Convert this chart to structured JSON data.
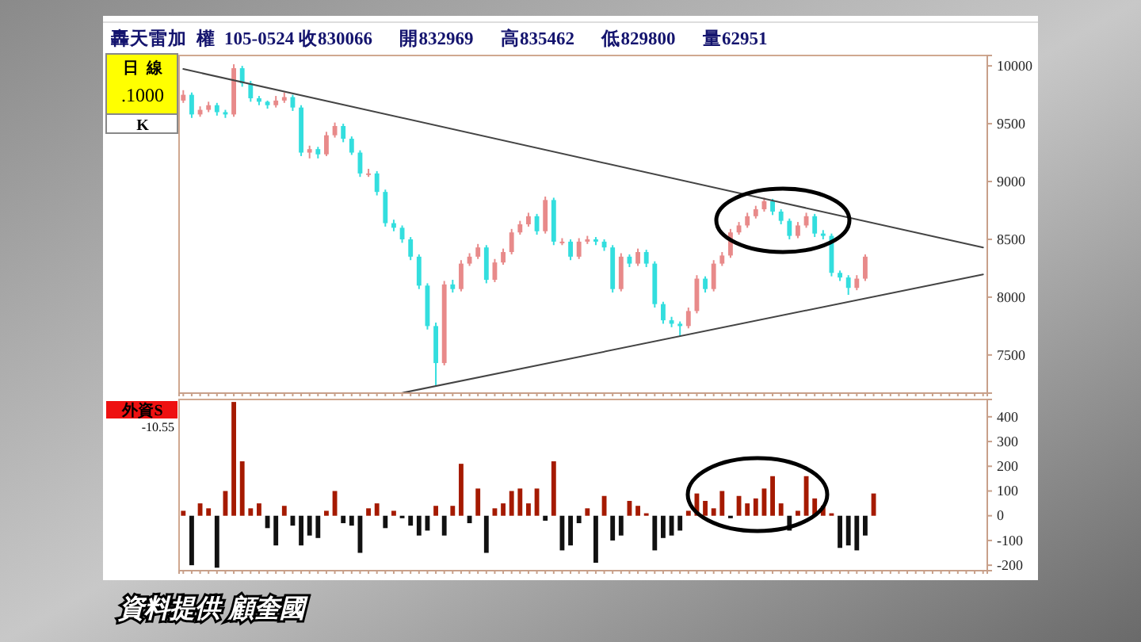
{
  "chart_data": [
    {
      "type": "candlestick",
      "title": "轟天雷加  權  105-0524 收830066      開832969      高835462      低829800      量62951",
      "annotations": [
        "日  線",
        ".1000",
        "K",
        "資料提供 顧奎國"
      ],
      "categories": [
        null,
        null,
        null,
        null,
        null,
        null,
        null,
        null,
        null,
        null,
        null,
        null,
        null,
        null,
        null,
        null,
        null,
        null,
        null,
        null,
        null,
        null,
        null,
        null,
        null,
        null,
        null,
        null,
        null,
        null,
        null,
        null,
        null,
        null,
        null,
        null,
        null,
        null,
        null,
        null,
        null,
        null,
        null,
        null,
        null,
        null,
        null,
        null,
        null,
        null,
        null,
        null,
        null,
        null,
        null,
        null,
        null,
        null,
        null,
        null,
        null,
        null,
        null,
        null,
        null,
        null,
        null,
        null,
        null,
        null,
        null,
        null,
        null,
        null,
        null,
        null,
        null,
        null,
        null,
        null,
        null,
        null,
        null,
        null,
        null,
        null,
        null,
        null,
        null,
        null,
        null,
        null,
        null,
        null,
        null,
        null
      ],
      "colors": [
        "#e88a8a",
        "#33dede",
        "#e88a8a",
        "#e88a8a",
        "#33dede",
        "#33dede",
        "#e88a8a",
        "#33dede",
        "#33dede",
        "#33dede",
        "#33dede",
        "#e88a8a",
        "#e88a8a",
        "#33dede",
        "#33dede",
        "#e88a8a",
        "#33dede",
        "#e88a8a",
        "#e88a8a",
        "#33dede",
        "#33dede",
        "#33dede",
        "#e88a8a",
        "#33dede",
        "#33dede",
        "#33dede",
        "#33dede",
        "#33dede",
        "#33dede",
        "#33dede",
        "#33dede",
        "#e88a8a",
        "#33dede",
        "#e88a8a",
        "#e88a8a",
        "#e88a8a",
        "#33dede",
        "#e88a8a",
        "#e88a8a",
        "#e88a8a",
        "#e88a8a",
        "#e88a8a",
        "#33dede",
        "#e88a8a",
        "#33dede",
        "#e88a8a",
        "#33dede",
        "#e88a8a",
        "#e88a8a",
        "#33dede",
        "#33dede",
        "#33dede",
        "#e88a8a",
        "#33dede",
        "#e88a8a",
        "#33dede",
        "#33dede",
        "#33dede",
        "#33dede",
        "#33dede",
        "#e88a8a",
        "#e88a8a",
        "#33dede",
        "#e88a8a",
        "#e88a8a",
        "#e88a8a",
        "#e88a8a",
        "#e88a8a",
        "#e88a8a",
        "#e88a8a",
        "#33dede",
        "#33dede",
        "#33dede",
        "#e88a8a",
        "#e88a8a",
        "#33dede",
        "#33dede",
        "#33dede",
        "#33dede",
        "#33dede",
        "#e88a8a",
        "#e88a8a",
        null,
        null,
        null,
        null,
        null,
        null,
        null,
        null,
        null,
        null,
        null,
        null,
        null,
        null
      ],
      "ohlc": [
        [
          9700,
          9790,
          9680,
          9750
        ],
        [
          9750,
          9770,
          9550,
          9580
        ],
        [
          9580,
          9650,
          9560,
          9620
        ],
        [
          9620,
          9690,
          9600,
          9660
        ],
        [
          9660,
          9680,
          9570,
          9600
        ],
        [
          9600,
          9620,
          9550,
          9580
        ],
        [
          9580,
          10014,
          9560,
          9980
        ],
        [
          9980,
          10000,
          9820,
          9850
        ],
        [
          9850,
          9870,
          9690,
          9720
        ],
        [
          9720,
          9740,
          9660,
          9690
        ],
        [
          9690,
          9700,
          9630,
          9660
        ],
        [
          9660,
          9740,
          9640,
          9700
        ],
        [
          9700,
          9770,
          9680,
          9730
        ],
        [
          9730,
          9750,
          9610,
          9640
        ],
        [
          9640,
          9660,
          9220,
          9250
        ],
        [
          9250,
          9310,
          9200,
          9280
        ],
        [
          9280,
          9300,
          9200,
          9235
        ],
        [
          9235,
          9430,
          9220,
          9400
        ],
        [
          9400,
          9510,
          9380,
          9480
        ],
        [
          9480,
          9500,
          9340,
          9370
        ],
        [
          9370,
          9390,
          9230,
          9250
        ],
        [
          9250,
          9270,
          9040,
          9070
        ],
        [
          9070,
          9110,
          9040,
          9070
        ],
        [
          9070,
          9090,
          8880,
          8910
        ],
        [
          8910,
          8930,
          8610,
          8640
        ],
        [
          8640,
          8670,
          8570,
          8600
        ],
        [
          8600,
          8620,
          8470,
          8500
        ],
        [
          8500,
          8520,
          8320,
          8350
        ],
        [
          8350,
          8370,
          8070,
          8100
        ],
        [
          8100,
          8120,
          7720,
          7750
        ],
        [
          7750,
          7780,
          7230,
          7430
        ],
        [
          7430,
          8140,
          7410,
          8110
        ],
        [
          8110,
          8150,
          8040,
          8070
        ],
        [
          8070,
          8320,
          8050,
          8290
        ],
        [
          8290,
          8380,
          8270,
          8350
        ],
        [
          8350,
          8460,
          8330,
          8430
        ],
        [
          8430,
          8450,
          8120,
          8150
        ],
        [
          8150,
          8330,
          8130,
          8300
        ],
        [
          8300,
          8420,
          8280,
          8390
        ],
        [
          8390,
          8590,
          8370,
          8560
        ],
        [
          8560,
          8660,
          8540,
          8630
        ],
        [
          8630,
          8730,
          8610,
          8700
        ],
        [
          8700,
          8720,
          8540,
          8570
        ],
        [
          8570,
          8870,
          8550,
          8840
        ],
        [
          8840,
          8860,
          8450,
          8480
        ],
        [
          8480,
          8510,
          8450,
          8480
        ],
        [
          8480,
          8500,
          8320,
          8350
        ],
        [
          8350,
          8510,
          8330,
          8480
        ],
        [
          8480,
          8530,
          8460,
          8500
        ],
        [
          8500,
          8520,
          8450,
          8480
        ],
        [
          8480,
          8500,
          8400,
          8430
        ],
        [
          8430,
          8450,
          8040,
          8070
        ],
        [
          8070,
          8380,
          8050,
          8350
        ],
        [
          8350,
          8370,
          8260,
          8290
        ],
        [
          8290,
          8420,
          8270,
          8390
        ],
        [
          8390,
          8410,
          8260,
          8290
        ],
        [
          8290,
          8310,
          7910,
          7940
        ],
        [
          7940,
          7960,
          7770,
          7800
        ],
        [
          7800,
          7830,
          7740,
          7770
        ],
        [
          7770,
          7790,
          7660,
          7750
        ],
        [
          7750,
          7910,
          7730,
          7880
        ],
        [
          7880,
          8190,
          7860,
          8160
        ],
        [
          8160,
          8180,
          8040,
          8070
        ],
        [
          8070,
          8320,
          8050,
          8290
        ],
        [
          8290,
          8390,
          8270,
          8360
        ],
        [
          8360,
          8590,
          8340,
          8560
        ],
        [
          8560,
          8650,
          8540,
          8620
        ],
        [
          8620,
          8730,
          8600,
          8700
        ],
        [
          8700,
          8790,
          8680,
          8760
        ],
        [
          8760,
          8860,
          8740,
          8830
        ],
        [
          8830,
          8850,
          8710,
          8740
        ],
        [
          8740,
          8760,
          8630,
          8660
        ],
        [
          8660,
          8680,
          8500,
          8530
        ],
        [
          8530,
          8650,
          8510,
          8620
        ],
        [
          8620,
          8730,
          8600,
          8700
        ],
        [
          8700,
          8720,
          8520,
          8550
        ],
        [
          8550,
          8580,
          8500,
          8530
        ],
        [
          8530,
          8550,
          8180,
          8210
        ],
        [
          8210,
          8230,
          8140,
          8170
        ],
        [
          8170,
          8190,
          8020,
          8080
        ],
        [
          8080,
          8190,
          8060,
          8160
        ],
        [
          8160,
          8370,
          8140,
          8350
        ],
        null,
        null,
        null,
        null,
        null,
        null,
        null,
        null,
        null,
        null,
        null,
        null,
        null,
        null
      ],
      "series": [
        {
          "type": "line",
          "color": "#444444",
          "values": [
            9973,
            null,
            null,
            null,
            null,
            null,
            null,
            null,
            null,
            null,
            null,
            null,
            null,
            null,
            null,
            null,
            null,
            null,
            null,
            null,
            null,
            null,
            null,
            null,
            null,
            null,
            null,
            null,
            null,
            null,
            null,
            null,
            null,
            null,
            null,
            null,
            null,
            null,
            null,
            null,
            null,
            null,
            null,
            null,
            null,
            null,
            null,
            null,
            null,
            null,
            null,
            null,
            null,
            null,
            null,
            null,
            null,
            null,
            null,
            null,
            null,
            null,
            null,
            null,
            null,
            null,
            null,
            null,
            null,
            null,
            null,
            null,
            null,
            null,
            null,
            null,
            null,
            null,
            null,
            null,
            null,
            null,
            null,
            null,
            null,
            null,
            null,
            null,
            null,
            null,
            null,
            null,
            null,
            null,
            null,
            8429
          ]
        },
        {
          "type": "line",
          "color": "#444444",
          "values": [
            null,
            null,
            null,
            null,
            null,
            null,
            null,
            null,
            null,
            null,
            null,
            null,
            null,
            null,
            null,
            null,
            null,
            null,
            null,
            null,
            null,
            null,
            null,
            null,
            null,
            null,
            7172,
            null,
            null,
            null,
            null,
            null,
            null,
            null,
            null,
            null,
            null,
            null,
            null,
            null,
            null,
            null,
            null,
            null,
            null,
            null,
            null,
            null,
            null,
            null,
            null,
            null,
            null,
            null,
            null,
            null,
            null,
            null,
            null,
            null,
            null,
            null,
            null,
            null,
            null,
            null,
            null,
            null,
            null,
            null,
            null,
            null,
            null,
            null,
            null,
            null,
            null,
            null,
            null,
            null,
            null,
            null,
            null,
            null,
            null,
            null,
            null,
            null,
            null,
            null,
            null,
            null,
            null,
            null,
            null,
            8197
          ]
        }
      ],
      "ylim": [
        7170,
        10090
      ],
      "yticks": [
        7500,
        8000,
        8500,
        9000,
        9500,
        10000
      ],
      "tick_labels": "y",
      "grid": false
    },
    {
      "type": "bar",
      "title": "外資S",
      "subtitle": "-10.55",
      "categories": [
        null,
        null,
        null,
        null,
        null,
        null,
        null,
        null,
        null,
        null,
        null,
        null,
        null,
        null,
        null,
        null,
        null,
        null,
        null,
        null,
        null,
        null,
        null,
        null,
        null,
        null,
        null,
        null,
        null,
        null,
        null,
        null,
        null,
        null,
        null,
        null,
        null,
        null,
        null,
        null,
        null,
        null,
        null,
        null,
        null,
        null,
        null,
        null,
        null,
        null,
        null,
        null,
        null,
        null,
        null,
        null,
        null,
        null,
        null,
        null,
        null,
        null,
        null,
        null,
        null,
        null,
        null,
        null,
        null,
        null,
        null,
        null,
        null,
        null,
        null,
        null,
        null,
        null,
        null,
        null,
        null,
        null,
        null,
        null,
        null,
        null,
        null,
        null,
        null,
        null,
        null,
        null,
        null,
        null,
        null,
        null
      ],
      "series": [
        {
          "color": "#a51a00",
          "values": [
            20,
            null,
            50,
            30,
            null,
            100,
            460,
            220,
            30,
            50,
            null,
            null,
            40,
            null,
            null,
            null,
            null,
            20,
            100,
            null,
            null,
            null,
            30,
            50,
            null,
            20,
            null,
            null,
            null,
            null,
            40,
            null,
            40,
            210,
            null,
            110,
            null,
            30,
            50,
            100,
            110,
            50,
            110,
            null,
            220,
            null,
            null,
            null,
            30,
            null,
            80,
            null,
            null,
            60,
            40,
            10,
            null,
            null,
            null,
            null,
            20,
            90,
            60,
            30,
            100,
            null,
            80,
            50,
            70,
            110,
            160,
            50,
            null,
            20,
            160,
            70,
            40,
            10,
            null,
            null,
            null,
            null,
            90,
            null,
            null,
            null,
            null,
            null,
            null,
            null,
            null,
            null,
            null,
            null,
            null,
            null
          ]
        },
        {
          "color": "#111111",
          "values": [
            null,
            -200,
            null,
            null,
            -210,
            null,
            null,
            null,
            null,
            null,
            -50,
            -120,
            null,
            -40,
            -120,
            -80,
            -90,
            null,
            null,
            -30,
            -40,
            -150,
            null,
            null,
            -50,
            null,
            -10,
            -40,
            -80,
            -60,
            null,
            -80,
            null,
            null,
            -30,
            null,
            -150,
            null,
            null,
            null,
            null,
            null,
            null,
            -20,
            null,
            -140,
            -120,
            -30,
            null,
            -190,
            null,
            -100,
            -80,
            null,
            null,
            null,
            -140,
            -90,
            -80,
            -60,
            null,
            null,
            null,
            null,
            null,
            -10,
            null,
            null,
            null,
            null,
            null,
            null,
            -60,
            null,
            null,
            null,
            null,
            null,
            -130,
            -120,
            -140,
            -80,
            null,
            null,
            null,
            null,
            null,
            null,
            null,
            null,
            null,
            null,
            null,
            null,
            null,
            null
          ]
        }
      ],
      "ylim": [
        -222,
        470
      ],
      "yticks": [
        -200,
        -100,
        0,
        100,
        200,
        300,
        400
      ],
      "tick_labels": "y",
      "grid": false
    }
  ]
}
